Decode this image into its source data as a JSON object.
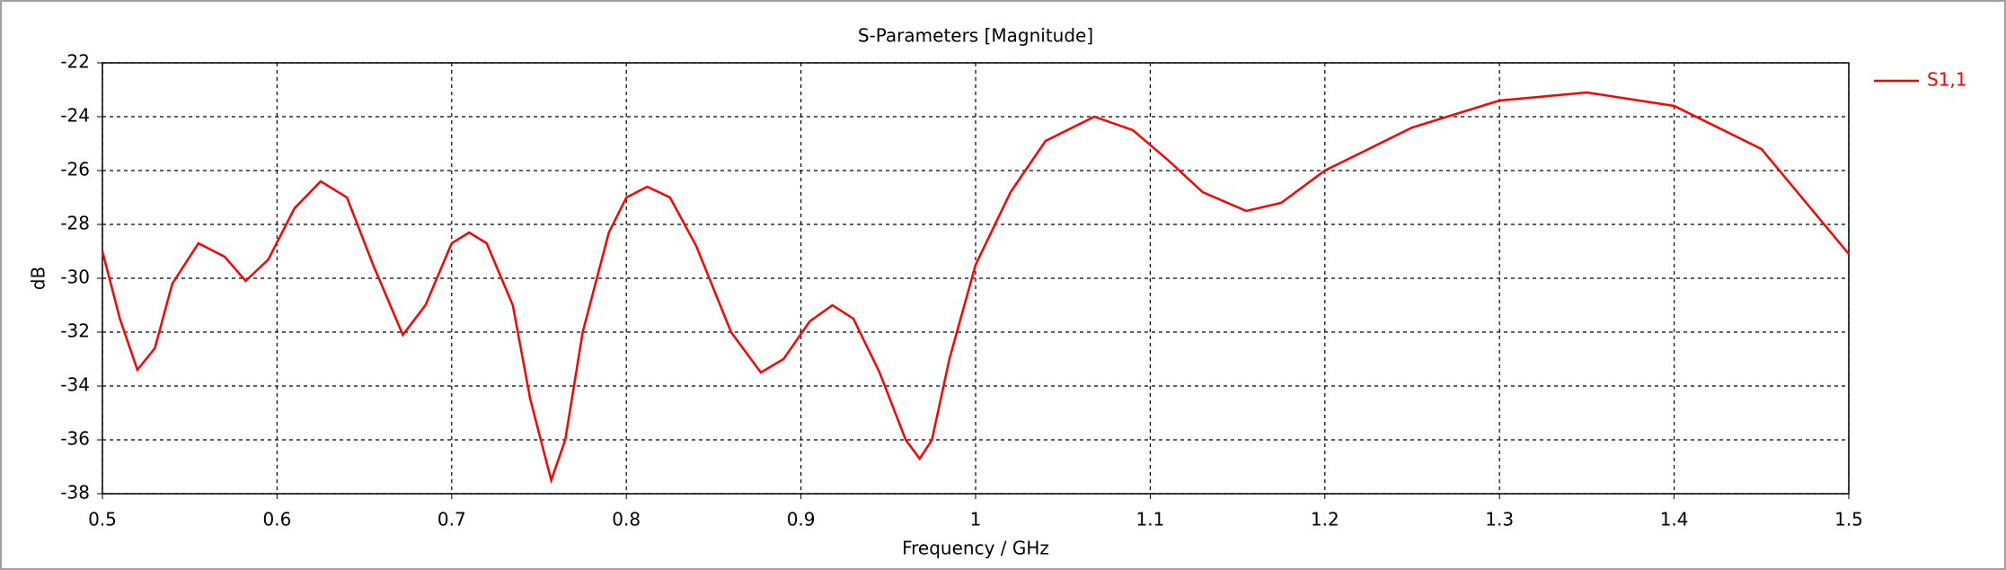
{
  "chart_data": {
    "type": "line",
    "title": "S-Parameters [Magnitude]",
    "x_label": "Frequency / GHz",
    "y_label": "dB",
    "x": [
      0.5,
      0.51,
      0.52,
      0.53,
      0.54,
      0.555,
      0.57,
      0.582,
      0.595,
      0.61,
      0.625,
      0.64,
      0.655,
      0.672,
      0.685,
      0.7,
      0.71,
      0.72,
      0.735,
      0.745,
      0.757,
      0.765,
      0.775,
      0.79,
      0.8,
      0.812,
      0.825,
      0.84,
      0.86,
      0.877,
      0.89,
      0.905,
      0.918,
      0.93,
      0.945,
      0.96,
      0.968,
      0.975,
      0.985,
      1.0,
      1.02,
      1.04,
      1.068,
      1.09,
      1.11,
      1.13,
      1.155,
      1.175,
      1.2,
      1.25,
      1.3,
      1.35,
      1.4,
      1.45,
      1.5
    ],
    "series": [
      {
        "name": "S1,1",
        "color": "#ff0000",
        "values": [
          -29.0,
          -31.5,
          -33.4,
          -32.6,
          -30.2,
          -28.7,
          -29.2,
          -30.1,
          -29.3,
          -27.4,
          -26.4,
          -27.0,
          -29.5,
          -32.1,
          -31.0,
          -28.7,
          -28.3,
          -28.7,
          -31.0,
          -34.5,
          -37.5,
          -36.0,
          -32.0,
          -28.3,
          -27.0,
          -26.6,
          -27.0,
          -28.8,
          -32.0,
          -33.5,
          -33.0,
          -31.6,
          -31.0,
          -31.5,
          -33.5,
          -36.0,
          -36.7,
          -36.0,
          -33.0,
          -29.5,
          -26.8,
          -24.9,
          -24.0,
          -24.5,
          -25.6,
          -26.8,
          -27.5,
          -27.2,
          -26.0,
          -24.4,
          -23.4,
          -23.1,
          -23.6,
          -25.2,
          -29.1
        ]
      }
    ],
    "xlim": [
      0.5,
      1.5
    ],
    "xticks": [
      0.5,
      0.6,
      0.7,
      0.8,
      0.9,
      1,
      1.1,
      1.2,
      1.3,
      1.4,
      1.5
    ],
    "ylim": [
      -38,
      -22
    ],
    "yticks": [
      -22,
      -24,
      -26,
      -28,
      -30,
      -32,
      -34,
      -36,
      -38
    ],
    "grid": true,
    "legend": "right"
  }
}
